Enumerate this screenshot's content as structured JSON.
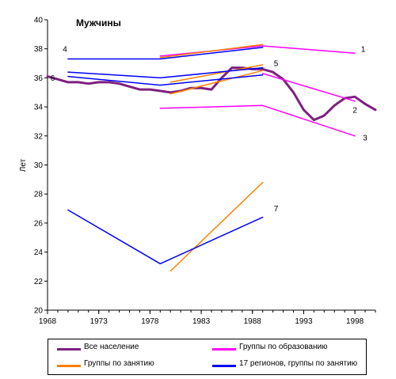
{
  "chart_data": {
    "type": "line",
    "title": "Мужчины",
    "ylabel": "Лет",
    "xlabel": "",
    "xlim": [
      1968,
      2000
    ],
    "ylim": [
      20,
      40
    ],
    "x_ticks": [
      1968,
      1973,
      1978,
      1983,
      1988,
      1993,
      1998
    ],
    "y_ticks": [
      20,
      22,
      24,
      26,
      28,
      30,
      32,
      34,
      36,
      38,
      40
    ],
    "grid": false,
    "legend_position": "bottom",
    "series": [
      {
        "name": "Все население",
        "color": "#7f1f7f",
        "width": 3,
        "points": [
          [
            1968,
            36.1
          ],
          [
            1969,
            35.9
          ],
          [
            1970,
            35.7
          ],
          [
            1971,
            35.7
          ],
          [
            1972,
            35.6
          ],
          [
            1973,
            35.7
          ],
          [
            1974,
            35.7
          ],
          [
            1975,
            35.6
          ],
          [
            1976,
            35.4
          ],
          [
            1977,
            35.2
          ],
          [
            1978,
            35.2
          ],
          [
            1979,
            35.1
          ],
          [
            1980,
            35.0
          ],
          [
            1981,
            35.1
          ],
          [
            1982,
            35.3
          ],
          [
            1983,
            35.3
          ],
          [
            1984,
            35.2
          ],
          [
            1985,
            36.0
          ],
          [
            1986,
            36.7
          ],
          [
            1987,
            36.7
          ],
          [
            1988,
            36.6
          ],
          [
            1989,
            36.6
          ],
          [
            1990,
            36.4
          ],
          [
            1991,
            35.9
          ],
          [
            1992,
            35.0
          ],
          [
            1993,
            33.8
          ],
          [
            1994,
            33.1
          ],
          [
            1995,
            33.4
          ],
          [
            1996,
            34.1
          ],
          [
            1997,
            34.6
          ],
          [
            1998,
            34.7
          ],
          [
            1999,
            34.2
          ],
          [
            2000,
            33.8
          ]
        ]
      },
      {
        "name": "Группы по образованию",
        "color": "#ff00ff",
        "width": 1.5,
        "points": [
          [
            1979,
            37.5
          ],
          [
            1989,
            38.2
          ],
          [
            1998,
            37.7
          ]
        ]
      },
      {
        "name": "Группы по образованию",
        "color": "#ff00ff",
        "width": 1.5,
        "points": [
          [
            1989,
            36.3
          ],
          [
            1998,
            34.4
          ]
        ]
      },
      {
        "name": "Группы по образованию",
        "color": "#ff00ff",
        "width": 1.5,
        "points": [
          [
            1979,
            33.9
          ],
          [
            1989,
            34.1
          ],
          [
            1998,
            32.0
          ]
        ]
      },
      {
        "name": "Группы по занятию",
        "color": "#ff8000",
        "width": 1.5,
        "points": [
          [
            1979,
            37.4
          ],
          [
            1989,
            38.3
          ]
        ]
      },
      {
        "name": "Группы по занятию",
        "color": "#ff8000",
        "width": 1.5,
        "points": [
          [
            1980,
            35.7
          ],
          [
            1989,
            36.9
          ]
        ]
      },
      {
        "name": "Группы по занятию",
        "color": "#ff8000",
        "width": 1.5,
        "points": [
          [
            1980,
            34.9
          ],
          [
            1989,
            36.5
          ]
        ]
      },
      {
        "name": "Группы по занятию",
        "color": "#ff8000",
        "width": 1.5,
        "points": [
          [
            1980,
            22.7
          ],
          [
            1989,
            28.8
          ]
        ]
      },
      {
        "name": "17 регионов, группы по занятию",
        "color": "#0000ff",
        "width": 1.5,
        "points": [
          [
            1970,
            37.3
          ],
          [
            1979,
            37.3
          ],
          [
            1989,
            38.1
          ]
        ]
      },
      {
        "name": "17 регионов, группы по занятию",
        "color": "#0000ff",
        "width": 1.5,
        "points": [
          [
            1970,
            36.4
          ],
          [
            1979,
            36.0
          ],
          [
            1989,
            36.7
          ]
        ]
      },
      {
        "name": "17 регионов, группы по занятию",
        "color": "#0000ff",
        "width": 1.5,
        "points": [
          [
            1970,
            36.1
          ],
          [
            1979,
            35.5
          ],
          [
            1989,
            36.2
          ]
        ]
      },
      {
        "name": "17 регионов, группы по занятию",
        "color": "#0000ff",
        "width": 1.5,
        "points": [
          [
            1970,
            26.9
          ],
          [
            1979,
            23.2
          ],
          [
            1989,
            26.4
          ]
        ]
      }
    ],
    "annotations": [
      {
        "text": "1",
        "x": 1998.8,
        "y": 37.8
      },
      {
        "text": "2",
        "x": 1998.0,
        "y": 33.6
      },
      {
        "text": "3",
        "x": 1999.0,
        "y": 31.7
      },
      {
        "text": "4",
        "x": 1969.7,
        "y": 37.8
      },
      {
        "text": "5",
        "x": 1990.3,
        "y": 36.8
      },
      {
        "text": "6",
        "x": 1968.5,
        "y": 35.8
      },
      {
        "text": "7",
        "x": 1990.3,
        "y": 26.8
      }
    ]
  },
  "legend": [
    {
      "label": "Все население",
      "color": "#7f1f7f"
    },
    {
      "label": "Группы по образованию",
      "color": "#ff00ff"
    },
    {
      "label": "Группы по занятию",
      "color": "#ff8000"
    },
    {
      "label": "17 регионов, группы по занятию",
      "color": "#0000ff"
    }
  ]
}
